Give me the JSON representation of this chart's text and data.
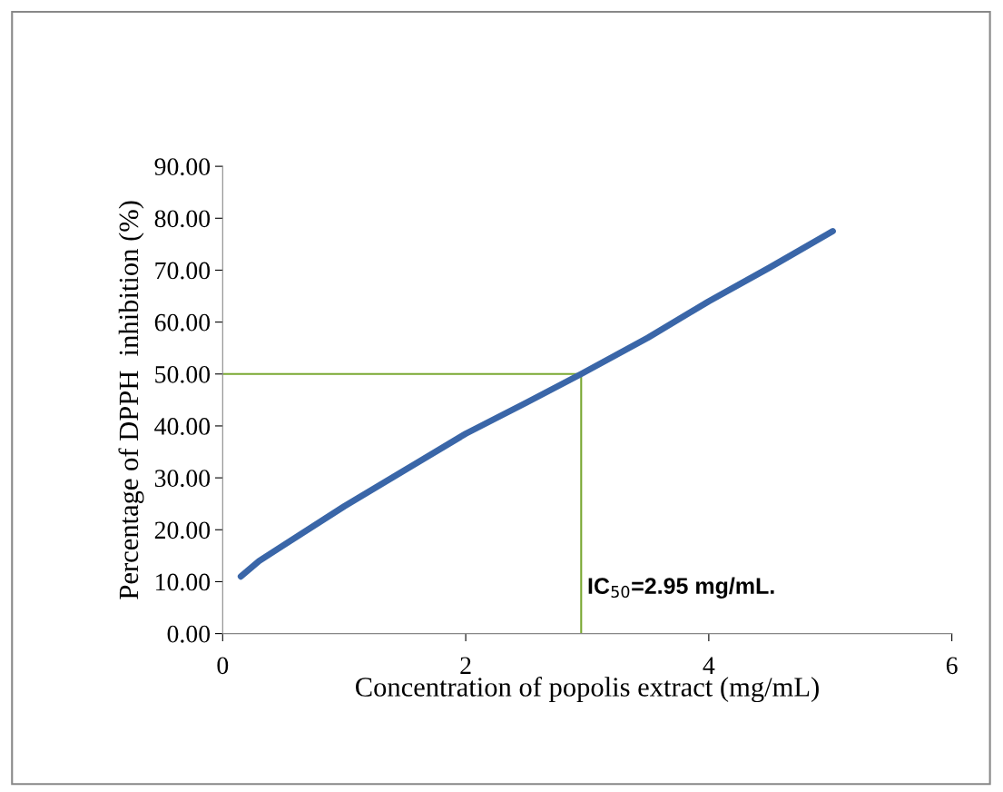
{
  "chart_data": {
    "type": "line",
    "xlabel": "Concentration of popolis extract (mg/mL)",
    "ylabel": "Percentage of DPPH  inhibition (%)",
    "x": [
      0.15,
      0.3,
      0.5,
      1,
      1.5,
      2,
      2.5,
      2.95,
      3.5,
      4,
      4.5,
      5.02
    ],
    "series": [
      {
        "color": "#3a66a8",
        "values": [
          11,
          14,
          17,
          24.5,
          31.5,
          38.5,
          44.5,
          50,
          57,
          64,
          70.5,
          77.5
        ]
      }
    ],
    "xlim": [
      0,
      6
    ],
    "xticks": [
      0,
      2,
      4,
      6
    ],
    "ylim": [
      0,
      90
    ],
    "yticks": [
      {
        "value": 0,
        "label": "0.00"
      },
      {
        "value": 10,
        "label": "10.00"
      },
      {
        "value": 20,
        "label": "20.00"
      },
      {
        "value": 30,
        "label": "30.00"
      },
      {
        "value": 40,
        "label": "40.00"
      },
      {
        "value": 50,
        "label": "50.00"
      },
      {
        "value": 60,
        "label": "60.00"
      },
      {
        "value": 70,
        "label": "70.00"
      },
      {
        "value": 80,
        "label": "80.00"
      },
      {
        "value": 90,
        "label": "90.00"
      }
    ],
    "ref_lines": [
      {
        "axis": "x",
        "value": 2.95,
        "color": "#7aa832"
      },
      {
        "axis": "y",
        "value": 50,
        "color": "#7aa832"
      }
    ],
    "annotations": [
      "IC$_{50}$=2.95 mg/mL."
    ],
    "grid": false,
    "legend": false,
    "marker": "none",
    "line_style": "solid"
  }
}
